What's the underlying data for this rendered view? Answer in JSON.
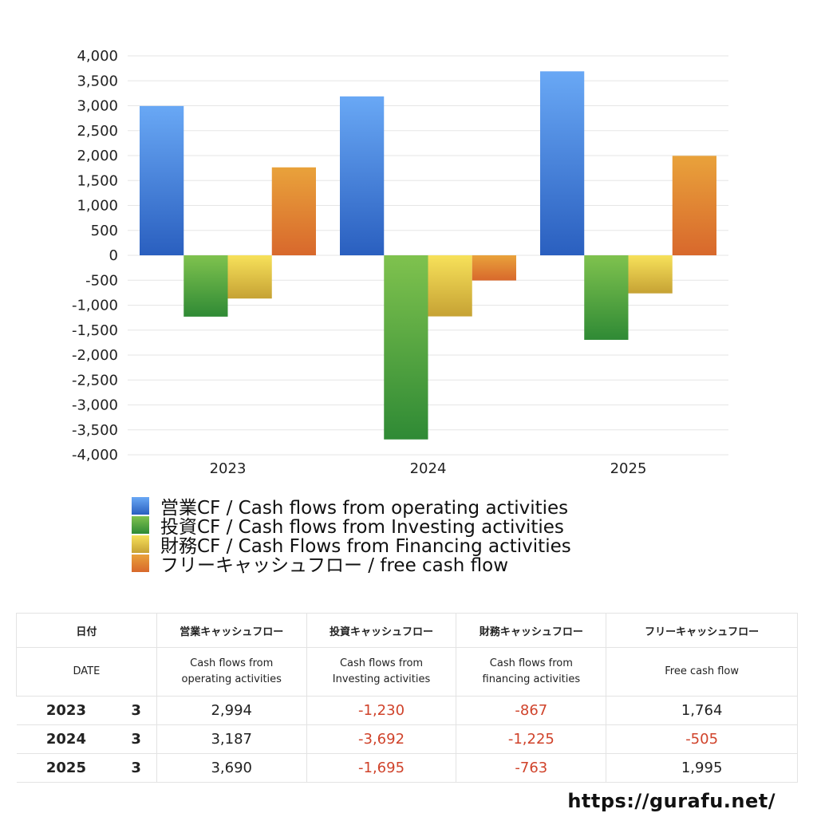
{
  "chart_data": {
    "type": "bar",
    "categories": [
      "2023",
      "2024",
      "2025"
    ],
    "series": [
      {
        "name": "営業CF / Cash flows from operating activities",
        "values": [
          2994,
          3187,
          3690
        ],
        "color_top": "#69a8f5",
        "color_bottom": "#2a5fbf"
      },
      {
        "name": "投資CF / Cash flows from Investing activities",
        "values": [
          -1230,
          -3692,
          -1695
        ],
        "color_top": "#7fc24e",
        "color_bottom": "#2f8a35"
      },
      {
        "name": "財務CF / Cash Flows from Financing activities",
        "values": [
          -867,
          -1225,
          -763
        ],
        "color_top": "#f7e15a",
        "color_bottom": "#c6a234"
      },
      {
        "name": "フリーキャッシュフロー / free cash flow",
        "values": [
          1764,
          -505,
          1995
        ],
        "color_top": "#e9a23b",
        "color_bottom": "#d8682c"
      }
    ],
    "ylim": [
      -4000,
      4000
    ],
    "yticks": [
      4000,
      3500,
      3000,
      2500,
      2000,
      1500,
      1000,
      500,
      0,
      -500,
      -1000,
      -1500,
      -2000,
      -2500,
      -3000,
      -3500,
      -4000
    ],
    "ytick_labels": [
      "4,000",
      "3,500",
      "3,000",
      "2,500",
      "2,000",
      "1,500",
      "1,000",
      "500",
      "0",
      "-500",
      "-1,000",
      "-1,500",
      "-2,000",
      "-2,500",
      "-3,000",
      "-3,500",
      "-4,000"
    ],
    "grid": true,
    "legend_position": "bottom"
  },
  "table": {
    "header_jp": [
      "日付",
      "営業キャッシュフロー",
      "投資キャッシュフロー",
      "財務キャッシュフロー",
      "フリーキャッシュフロー"
    ],
    "header_en": [
      "DATE",
      "Cash flows from\noperating activities",
      "Cash flows from\nInvesting activities",
      "Cash flows from\nfinancing activities",
      "Free cash flow"
    ],
    "rows": [
      {
        "year": "2023",
        "month": "3",
        "values": [
          "2,994",
          "-1,230",
          "-867",
          "1,764"
        ]
      },
      {
        "year": "2024",
        "month": "3",
        "values": [
          "3,187",
          "-3,692",
          "-1,225",
          "-505"
        ]
      },
      {
        "year": "2025",
        "month": "3",
        "values": [
          "3,690",
          "-1,695",
          "-763",
          "1,995"
        ]
      }
    ]
  },
  "footer_url": "https://gurafu.net/"
}
